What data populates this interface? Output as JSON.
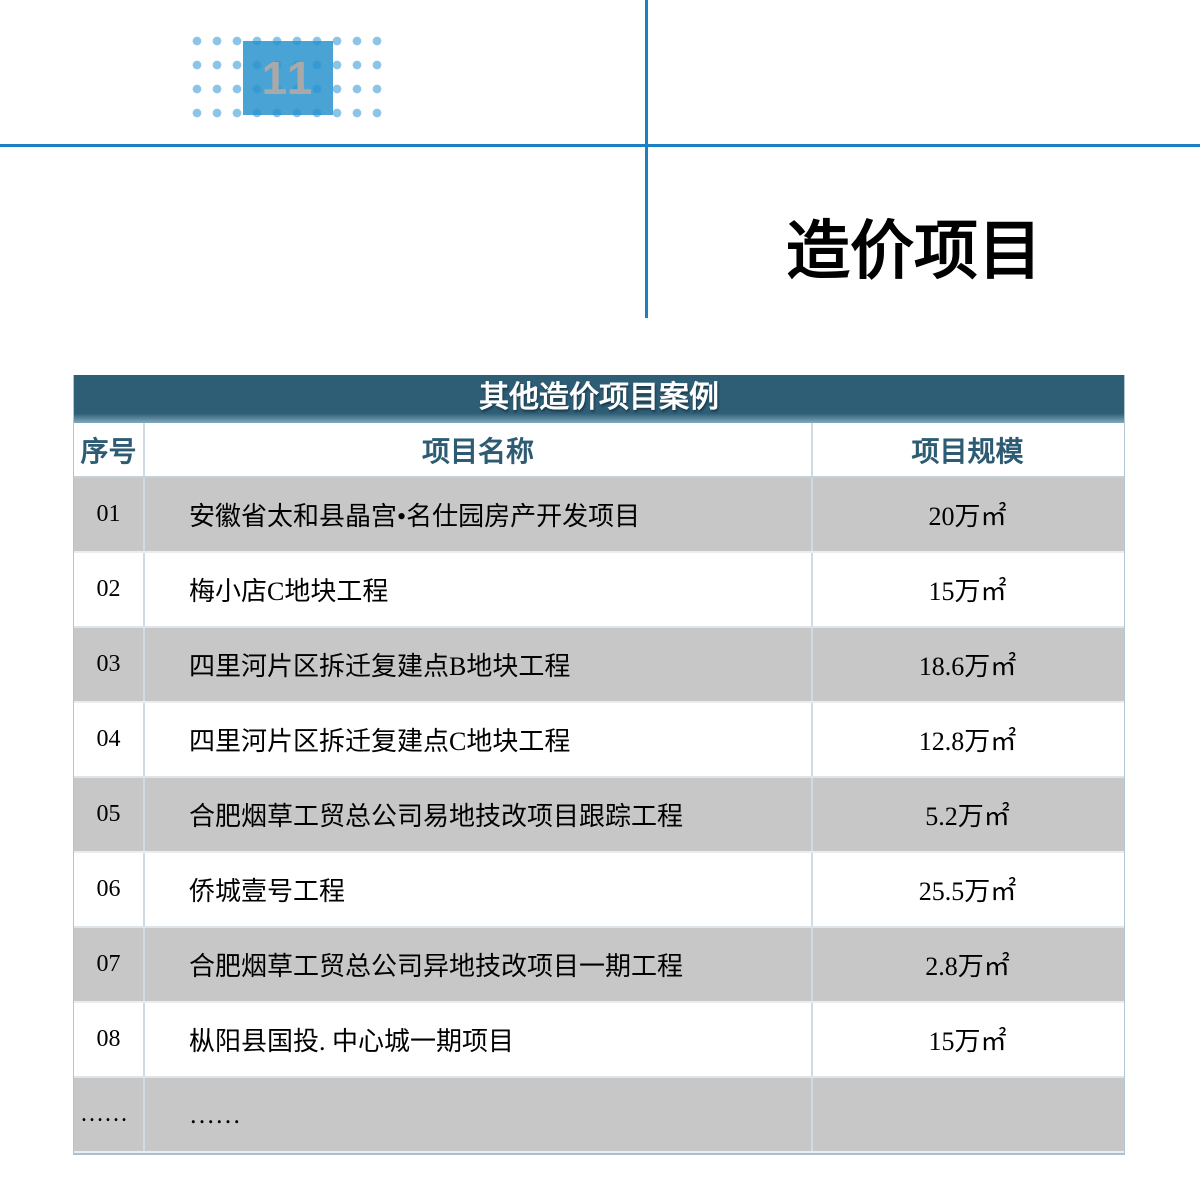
{
  "page": {
    "page_number": "11",
    "title": "造价项目"
  },
  "colors": {
    "accent_blue": "#1b80c4",
    "badge_blue": "#2993ce",
    "dot_blue": "#8ac4e6",
    "badge_number_gray": "#a9a9a9",
    "table_title_bg": "#2d5e76",
    "table_title_text": "#ffffff",
    "column_header_text": "#2c5b73",
    "row_alt_bg": "#c7c7c7",
    "row_bg": "#ffffff",
    "body_text": "#000000"
  },
  "table": {
    "title": "其他造价项目案例",
    "columns": [
      "序号",
      "项目名称",
      "项目规模"
    ],
    "rows": [
      {
        "no": "01",
        "name": "安徽省太和县晶宫•名仕园房产开发项目",
        "scale": "20万㎡"
      },
      {
        "no": "02",
        "name": "梅小店C地块工程",
        "scale": "15万㎡"
      },
      {
        "no": "03",
        "name": "四里河片区拆迁复建点B地块工程",
        "scale": "18.6万㎡"
      },
      {
        "no": "04",
        "name": "四里河片区拆迁复建点C地块工程",
        "scale": "12.8万㎡"
      },
      {
        "no": "05",
        "name": "合肥烟草工贸总公司易地技改项目跟踪工程",
        "scale": "5.2万㎡"
      },
      {
        "no": "06",
        "name": "侨城壹号工程",
        "scale": "25.5万㎡"
      },
      {
        "no": "07",
        "name": "合肥烟草工贸总公司异地技改项目一期工程",
        "scale": "2.8万㎡"
      },
      {
        "no": "08",
        "name": "枞阳县国投. 中心城一期项目",
        "scale": "15万㎡"
      },
      {
        "no": "……",
        "name": "……",
        "scale": ""
      }
    ]
  }
}
